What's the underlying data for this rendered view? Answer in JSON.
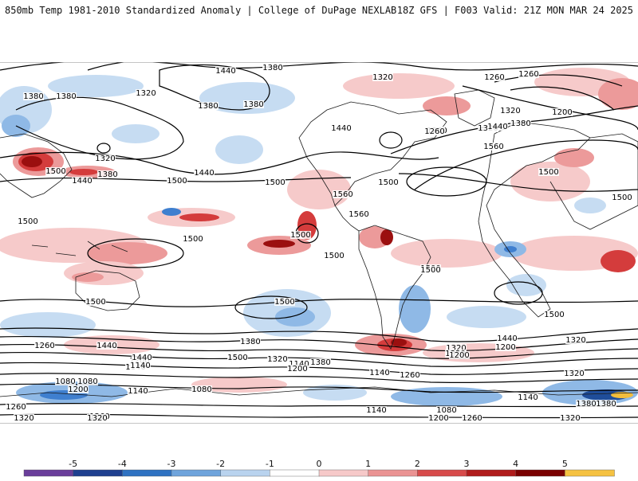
{
  "header": {
    "title_left": "850mb Temp 1981-2010 Standardized Anomaly | College of DuPage NEXLAB",
    "title_right": "18Z GFS | F003 Valid: 21Z MON MAR 24 2025"
  },
  "contour_labels": [
    {
      "text": "1380"
    },
    {
      "text": "1440"
    },
    {
      "text": "1320"
    },
    {
      "text": "1260"
    },
    {
      "text": "1380"
    },
    {
      "text": "1380"
    },
    {
      "text": "1320"
    },
    {
      "text": "1260"
    },
    {
      "text": "1320"
    },
    {
      "text": "1500"
    },
    {
      "text": "1440"
    },
    {
      "text": "1380"
    },
    {
      "text": "1500"
    },
    {
      "text": "1440"
    },
    {
      "text": "1500"
    },
    {
      "text": "1440"
    },
    {
      "text": "1380"
    },
    {
      "text": "1380"
    },
    {
      "text": "1320"
    },
    {
      "text": "1260"
    },
    {
      "text": "1320"
    },
    {
      "text": "1200"
    },
    {
      "text": "1440"
    },
    {
      "text": "1380"
    },
    {
      "text": "1260"
    },
    {
      "text": "1560"
    },
    {
      "text": "1500"
    },
    {
      "text": "1560"
    },
    {
      "text": "1500"
    },
    {
      "text": "1500"
    },
    {
      "text": "1500"
    },
    {
      "text": "1500"
    },
    {
      "text": "1500"
    },
    {
      "text": "1500"
    },
    {
      "text": "1500"
    },
    {
      "text": "1500"
    },
    {
      "text": "1500"
    },
    {
      "text": "1560"
    },
    {
      "text": "1500"
    },
    {
      "text": "1500"
    },
    {
      "text": "1260"
    },
    {
      "text": "1440"
    },
    {
      "text": "1380"
    },
    {
      "text": "1320"
    },
    {
      "text": "1440"
    },
    {
      "text": "1380"
    },
    {
      "text": "1320"
    },
    {
      "text": "1320"
    },
    {
      "text": "1200"
    },
    {
      "text": "1140"
    },
    {
      "text": "1200"
    },
    {
      "text": "1500"
    },
    {
      "text": "1260"
    },
    {
      "text": "1140"
    },
    {
      "text": "1440"
    },
    {
      "text": "1320"
    },
    {
      "text": "1200"
    },
    {
      "text": "1140"
    },
    {
      "text": "1080"
    },
    {
      "text": "1200"
    },
    {
      "text": "1140"
    },
    {
      "text": "1080"
    },
    {
      "text": "1260"
    },
    {
      "text": "1320"
    },
    {
      "text": "1380"
    },
    {
      "text": "1200"
    },
    {
      "text": "1140"
    },
    {
      "text": "1080"
    },
    {
      "text": "1260"
    },
    {
      "text": "1320"
    },
    {
      "text": "1140"
    },
    {
      "text": "1200"
    },
    {
      "text": "1260"
    },
    {
      "text": "1080"
    },
    {
      "text": "1140"
    },
    {
      "text": "1380"
    },
    {
      "text": "1320"
    },
    {
      "text": "1320"
    }
  ],
  "colorbar": {
    "ticks": [
      "-5",
      "-4",
      "-3",
      "-2",
      "-1",
      "0",
      "1",
      "2",
      "3",
      "4",
      "5"
    ],
    "colors": [
      "#6a3d9a",
      "#1f3f8f",
      "#2f72c2",
      "#6fa4dc",
      "#b9d3ee",
      "#ffffff",
      "#f6c9c9",
      "#ea9393",
      "#d74b4b",
      "#b01c1c",
      "#7a0000",
      "#f5c242"
    ]
  },
  "palette": {
    "warm_light": "#f6caca",
    "warm_mid": "#ec9a9a",
    "warm_strong": "#d43c3c",
    "warm_dark": "#9b0f0f",
    "cool_light": "#c6dcf2",
    "cool_mid": "#8fb9e6",
    "cool_strong": "#3f7fcf",
    "cool_dark": "#1f4d9a",
    "gold": "#f2bd3c",
    "coast": "#1a1a1a",
    "contour": "#000000"
  }
}
